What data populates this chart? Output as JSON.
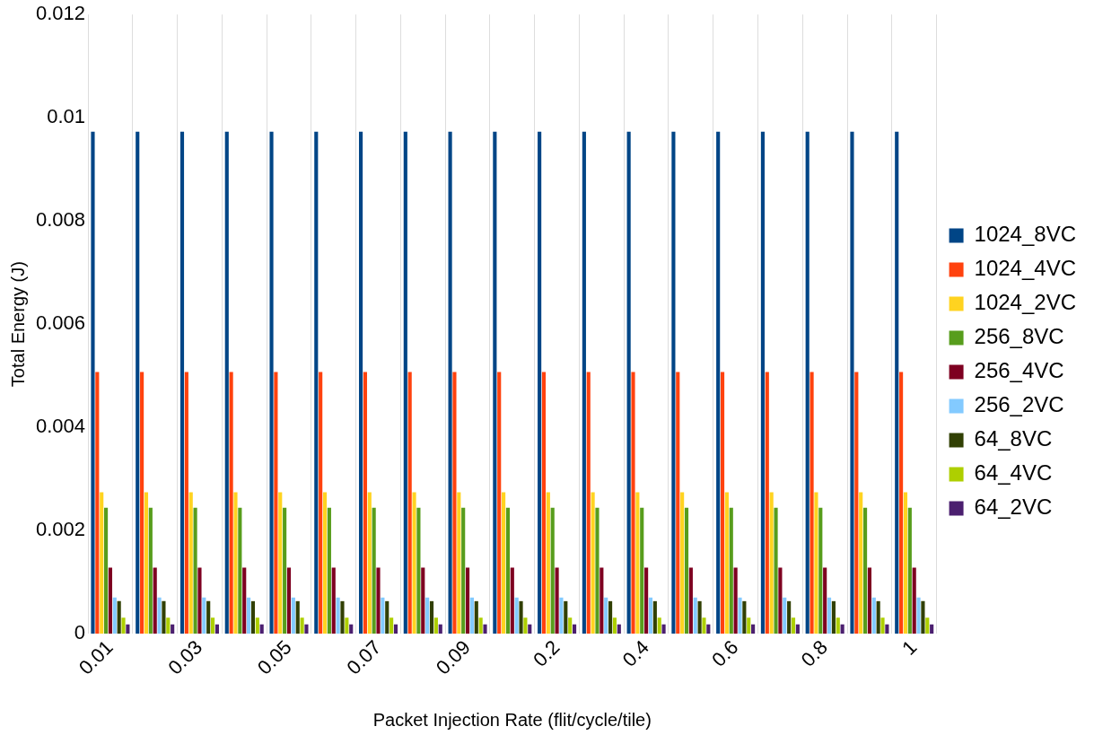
{
  "chart_data": {
    "type": "bar",
    "xlabel": "Packet Injection Rate (flit/cycle/tile)",
    "ylabel": "Total Energy (J)",
    "categories": [
      "0.01",
      null,
      "0.03",
      null,
      "0.05",
      null,
      "0.07",
      null,
      "0.09",
      null,
      "0.2",
      null,
      "0.4",
      null,
      "0.6",
      null,
      "0.8",
      null,
      "1"
    ],
    "series": [
      {
        "name": "1024_8VC",
        "color": "#004586",
        "values": [
          0.00973,
          0.00973,
          0.00973,
          0.00973,
          0.00973,
          0.00973,
          0.00973,
          0.00973,
          0.00973,
          0.00973,
          0.00973,
          0.00973,
          0.00973,
          0.00973,
          0.00973,
          0.00973,
          0.00973,
          0.00973,
          0.00973
        ]
      },
      {
        "name": "1024_4VC",
        "color": "#ff420e",
        "values": [
          0.00507,
          0.00507,
          0.00507,
          0.00507,
          0.00507,
          0.00507,
          0.00507,
          0.00507,
          0.00507,
          0.00507,
          0.00507,
          0.00507,
          0.00507,
          0.00507,
          0.00507,
          0.00507,
          0.00507,
          0.00507,
          0.00507
        ]
      },
      {
        "name": "1024_2VC",
        "color": "#ffd320",
        "values": [
          0.00274,
          0.00274,
          0.00274,
          0.00274,
          0.00274,
          0.00274,
          0.00274,
          0.00274,
          0.00274,
          0.00274,
          0.00274,
          0.00274,
          0.00274,
          0.00274,
          0.00274,
          0.00274,
          0.00274,
          0.00274,
          0.00274
        ]
      },
      {
        "name": "256_8VC",
        "color": "#579d1c",
        "values": [
          0.00244,
          0.00244,
          0.00244,
          0.00244,
          0.00244,
          0.00244,
          0.00244,
          0.00244,
          0.00244,
          0.00244,
          0.00244,
          0.00244,
          0.00244,
          0.00244,
          0.00244,
          0.00244,
          0.00244,
          0.00244,
          0.00244
        ]
      },
      {
        "name": "256_4VC",
        "color": "#7e0021",
        "values": [
          0.00128,
          0.00128,
          0.00128,
          0.00128,
          0.00128,
          0.00128,
          0.00128,
          0.00128,
          0.00128,
          0.00128,
          0.00128,
          0.00128,
          0.00128,
          0.00128,
          0.00128,
          0.00128,
          0.00128,
          0.00128,
          0.00128
        ]
      },
      {
        "name": "256_2VC",
        "color": "#83caff",
        "values": [
          0.0007,
          0.0007,
          0.0007,
          0.0007,
          0.0007,
          0.0007,
          0.0007,
          0.0007,
          0.0007,
          0.0007,
          0.0007,
          0.0007,
          0.0007,
          0.0007,
          0.0007,
          0.0007,
          0.0007,
          0.0007,
          0.0007
        ]
      },
      {
        "name": "64_8VC",
        "color": "#314004",
        "values": [
          0.00063,
          0.00063,
          0.00063,
          0.00063,
          0.00063,
          0.00063,
          0.00063,
          0.00063,
          0.00063,
          0.00063,
          0.00063,
          0.00063,
          0.00063,
          0.00063,
          0.00063,
          0.00063,
          0.00063,
          0.00063,
          0.00063
        ]
      },
      {
        "name": "64_4VC",
        "color": "#aecf00",
        "values": [
          0.00031,
          0.00031,
          0.00031,
          0.00031,
          0.00031,
          0.00031,
          0.00031,
          0.00031,
          0.00031,
          0.00031,
          0.00031,
          0.00031,
          0.00031,
          0.00031,
          0.00031,
          0.00031,
          0.00031,
          0.00031,
          0.00031
        ]
      },
      {
        "name": "64_2VC",
        "color": "#4b1f6f",
        "values": [
          0.00018,
          0.00018,
          0.00018,
          0.00018,
          0.00018,
          0.00018,
          0.00018,
          0.00018,
          0.00018,
          0.00018,
          0.00018,
          0.00018,
          0.00018,
          0.00018,
          0.00018,
          0.00018,
          0.00018,
          0.00018,
          0.00018
        ]
      }
    ],
    "ylim": [
      0,
      0.012
    ],
    "yticks": [
      0,
      0.002,
      0.004,
      0.006,
      0.008,
      0.01,
      0.012
    ],
    "grid": "x",
    "legend": "right"
  }
}
